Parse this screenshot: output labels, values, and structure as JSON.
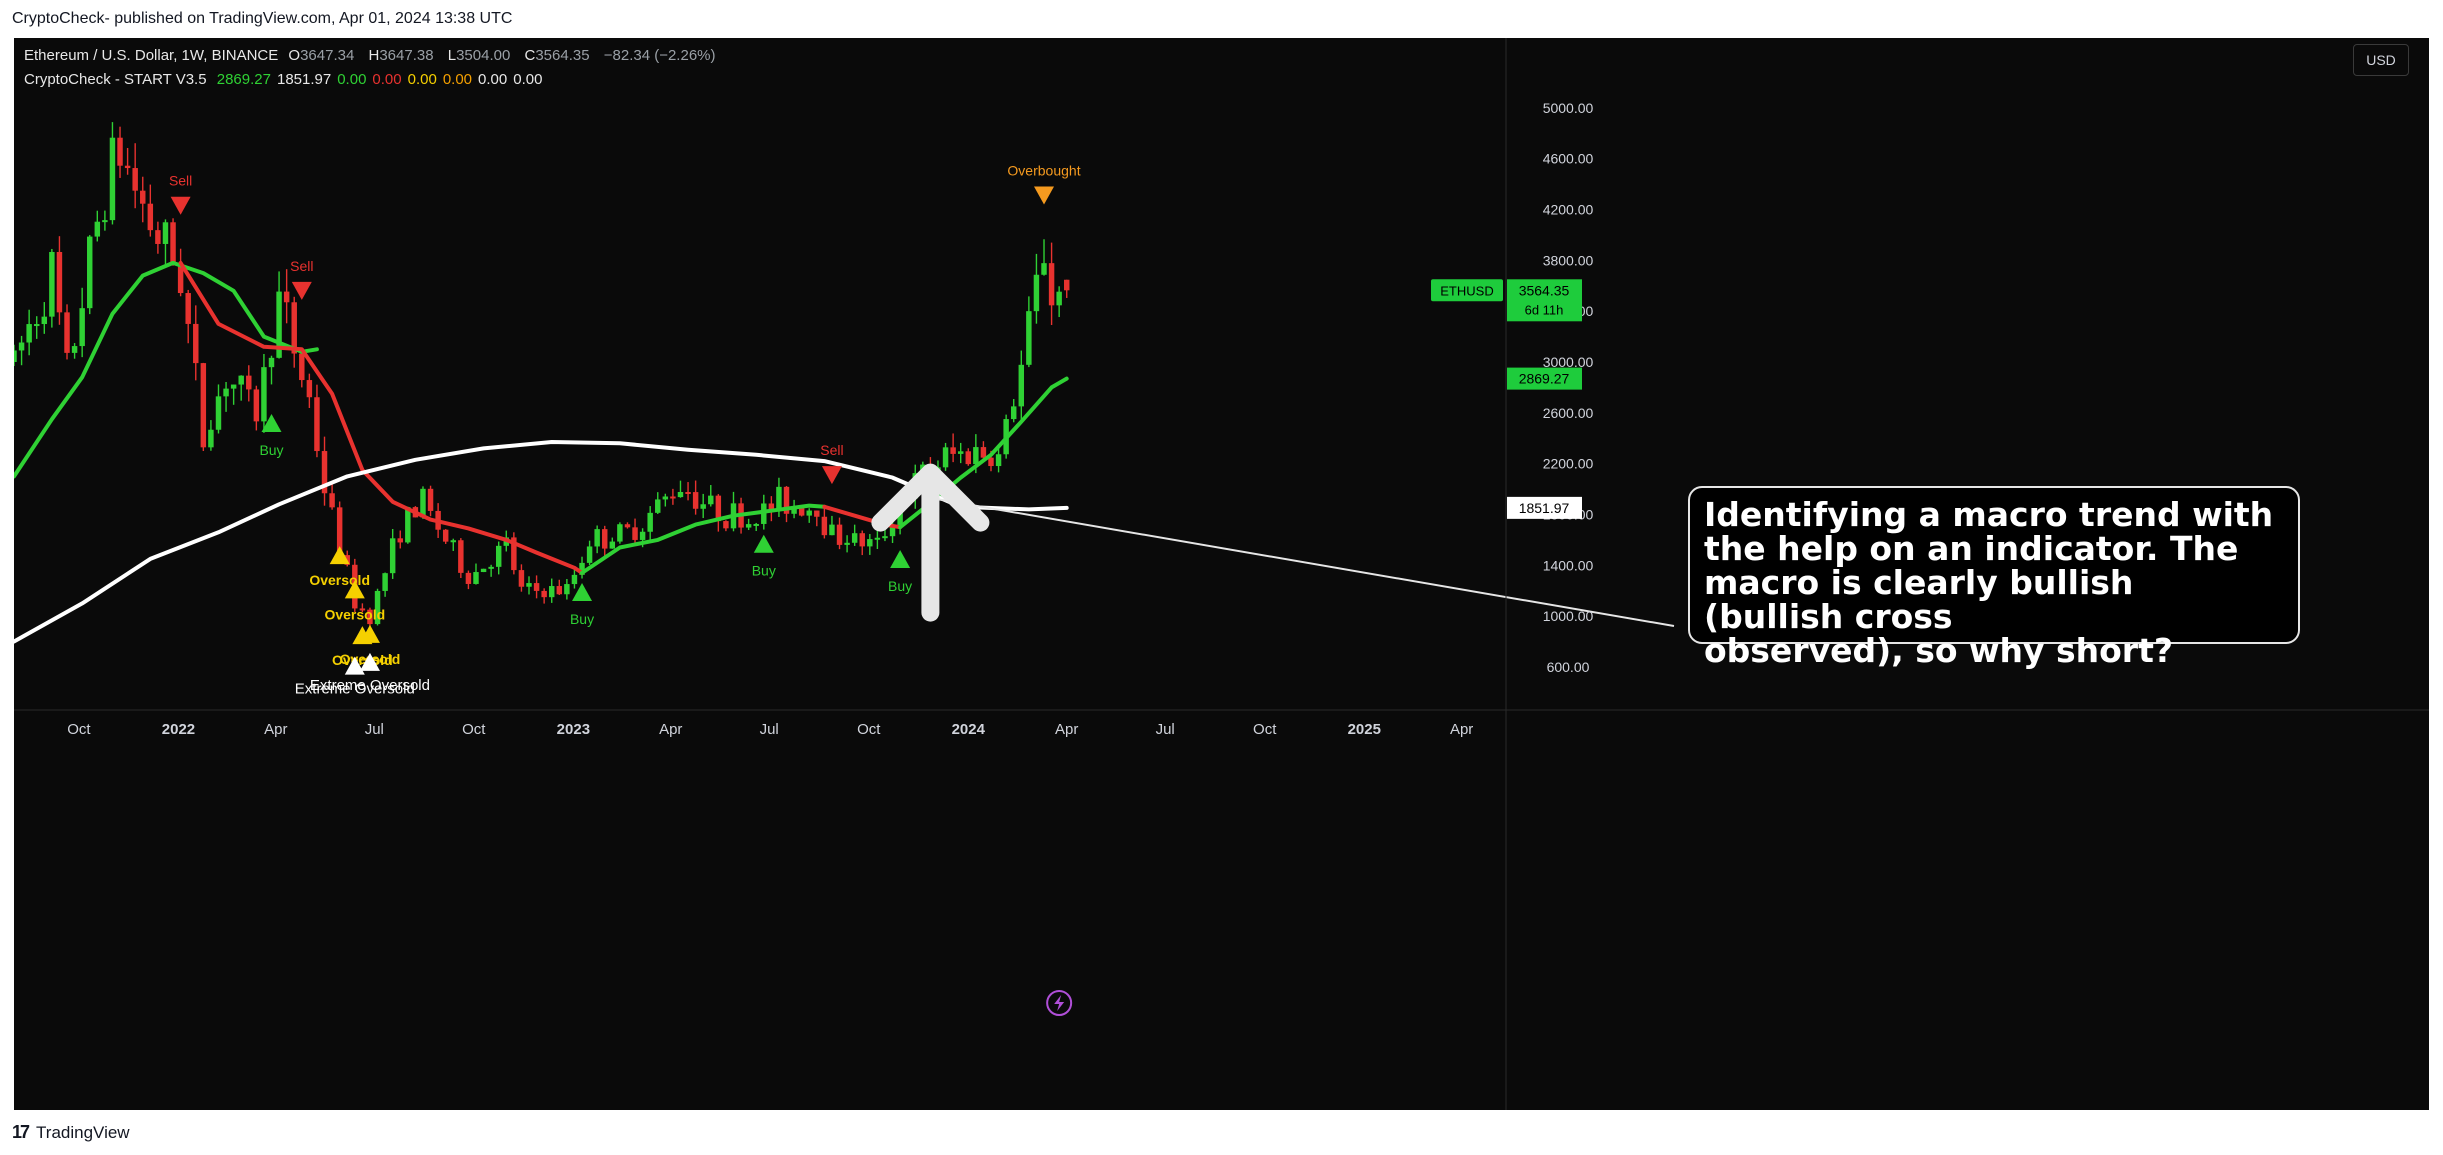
{
  "header": {
    "published_line": "CryptoCheck- published on TradingView.com, Apr 01, 2024 13:38 UTC"
  },
  "footer": {
    "brand": "TradingView",
    "logo_glyph": "17"
  },
  "legend": {
    "symbol": "Ethereum / U.S. Dollar, 1W, BINANCE",
    "o_label": "O",
    "o": "3647.34",
    "h_label": "H",
    "h": "3647.38",
    "l_label": "L",
    "l": "3504.00",
    "c_label": "C",
    "c": "3564.35",
    "change": "−82.34 (−2.26%)",
    "indicator_name": "CryptoCheck - START V3.5",
    "indicator_values": [
      {
        "text": "2869.27",
        "color": "#2fd134"
      },
      {
        "text": "1851.97",
        "color": "#e8e8e8"
      },
      {
        "text": "0.00",
        "color": "#2fd134"
      },
      {
        "text": "0.00",
        "color": "#e8322f"
      },
      {
        "text": "0.00",
        "color": "#f5d000"
      },
      {
        "text": "0.00",
        "color": "#f5a000"
      },
      {
        "text": "0.00",
        "color": "#e8e8e8"
      },
      {
        "text": "0.00",
        "color": "#e8e8e8"
      }
    ]
  },
  "price_scale": {
    "currency": "USD",
    "ticks": [
      "5000.00",
      "4600.00",
      "4200.00",
      "3800.00",
      "3400.00",
      "3000.00",
      "2600.00",
      "2200.00",
      "1800.00",
      "1400.00",
      "1000.00",
      "600.00"
    ],
    "tags": [
      {
        "label": "ETHUSD",
        "value": "3564.35",
        "extra": "6d 11h",
        "color": "#1ecc3c"
      },
      {
        "value": "2869.27",
        "color": "#1ecc3c"
      },
      {
        "value": "1851.97",
        "color": "#ffffff"
      }
    ]
  },
  "time_axis": {
    "ticks": [
      {
        "label": "Oct",
        "date": "2021-10-01"
      },
      {
        "label": "2022",
        "date": "2022-01-01"
      },
      {
        "label": "Apr",
        "date": "2022-04-01"
      },
      {
        "label": "Jul",
        "date": "2022-07-01"
      },
      {
        "label": "Oct",
        "date": "2022-10-01"
      },
      {
        "label": "2023",
        "date": "2023-01-01"
      },
      {
        "label": "Apr",
        "date": "2023-04-01"
      },
      {
        "label": "Jul",
        "date": "2023-07-01"
      },
      {
        "label": "Oct",
        "date": "2023-10-01"
      },
      {
        "label": "2024",
        "date": "2024-01-01"
      },
      {
        "label": "Apr",
        "date": "2024-04-01"
      },
      {
        "label": "Jul",
        "date": "2024-07-01"
      },
      {
        "label": "Oct",
        "date": "2024-10-01"
      },
      {
        "label": "2025",
        "date": "2025-01-01"
      },
      {
        "label": "Apr",
        "date": "2025-04-01"
      }
    ]
  },
  "annotation": {
    "lines": [
      "Identifying a macro trend with",
      "the help on an indicator. The",
      "macro is clearly bullish (bullish cross",
      "observed), so why short?"
    ]
  },
  "colors": {
    "up": "#2fd134",
    "down": "#e8322f",
    "ma_slow": "#ffffff",
    "oversold": "#f5d000",
    "overbought": "#f59a1f",
    "background": "#0a0a0a"
  },
  "icons": [
    "tradingview-logo-icon",
    "arrow-up-icon",
    "lightning-icon"
  ],
  "chart_data": {
    "type": "candlestick",
    "title": "Ethereum / U.S. Dollar, 1W, BINANCE",
    "ylim": [
      450,
      5550
    ],
    "xlim": [
      "2021-08-02",
      "2025-05-12"
    ],
    "log_scale": false,
    "grid": false,
    "keypoints": [
      [
        "2021-08-02",
        3000
      ],
      [
        "2021-09-06",
        3700
      ],
      [
        "2021-09-20",
        2900
      ],
      [
        "2021-10-25",
        4400
      ],
      [
        "2021-11-08",
        4650
      ],
      [
        "2021-12-06",
        4100
      ],
      [
        "2022-01-03",
        3700
      ],
      [
        "2022-01-24",
        2400
      ],
      [
        "2022-02-14",
        2900
      ],
      [
        "2022-03-14",
        2600
      ],
      [
        "2022-04-04",
        3500
      ],
      [
        "2022-05-02",
        2700
      ],
      [
        "2022-05-16",
        2000
      ],
      [
        "2022-06-13",
        1100
      ],
      [
        "2022-06-27",
        1000
      ],
      [
        "2022-07-25",
        1700
      ],
      [
        "2022-08-15",
        1900
      ],
      [
        "2022-09-05",
        1600
      ],
      [
        "2022-09-26",
        1300
      ],
      [
        "2022-10-31",
        1550
      ],
      [
        "2022-11-14",
        1200
      ],
      [
        "2022-12-26",
        1200
      ],
      [
        "2023-01-16",
        1600
      ],
      [
        "2023-02-20",
        1650
      ],
      [
        "2023-03-13",
        1800
      ],
      [
        "2023-04-10",
        2050
      ],
      [
        "2023-05-08",
        1850
      ],
      [
        "2023-06-12",
        1750
      ],
      [
        "2023-07-10",
        1900
      ],
      [
        "2023-08-14",
        1850
      ],
      [
        "2023-08-28",
        1650
      ],
      [
        "2023-10-09",
        1550
      ],
      [
        "2023-10-23",
        1800
      ],
      [
        "2023-11-13",
        2050
      ],
      [
        "2023-12-11",
        2250
      ],
      [
        "2024-01-08",
        2300
      ],
      [
        "2024-01-29",
        2250
      ],
      [
        "2024-02-19",
        2950
      ],
      [
        "2024-03-11",
        3900
      ],
      [
        "2024-03-18",
        3500
      ],
      [
        "2024-04-01",
        3564
      ]
    ],
    "candles": [],
    "series": [
      {
        "name": "2869.27",
        "color": "#2fd134",
        "points": [
          [
            "2021-08-02",
            2100
          ],
          [
            "2021-09-06",
            2550
          ],
          [
            "2021-10-04",
            2880
          ],
          [
            "2021-11-01",
            3380
          ],
          [
            "2021-11-29",
            3680
          ],
          [
            "2021-12-27",
            3780
          ],
          [
            "2022-01-24",
            3700
          ],
          [
            "2022-02-21",
            3560
          ],
          [
            "2022-03-21",
            3200
          ],
          [
            "2022-04-25",
            3080
          ],
          [
            "2022-05-09",
            3100
          ]
        ]
      },
      {
        "name": "",
        "color": "#e8322f",
        "points": [
          [
            "2022-01-03",
            3780
          ],
          [
            "2022-02-07",
            3300
          ],
          [
            "2022-03-21",
            3120
          ],
          [
            "2022-04-25",
            3100
          ],
          [
            "2022-05-23",
            2750
          ],
          [
            "2022-06-20",
            2150
          ],
          [
            "2022-07-18",
            1900
          ],
          [
            "2022-08-22",
            1760
          ],
          [
            "2022-09-26",
            1690
          ],
          [
            "2022-10-31",
            1600
          ],
          [
            "2022-11-28",
            1500
          ],
          [
            "2023-01-02",
            1380
          ],
          [
            "2023-01-09",
            1340
          ]
        ]
      },
      {
        "name": "",
        "color": "#2fd134",
        "points": [
          [
            "2023-01-09",
            1340
          ],
          [
            "2023-02-13",
            1540
          ],
          [
            "2023-03-20",
            1600
          ],
          [
            "2023-04-24",
            1720
          ],
          [
            "2023-05-29",
            1790
          ],
          [
            "2023-07-03",
            1830
          ],
          [
            "2023-08-07",
            1870
          ],
          [
            "2023-08-21",
            1860
          ]
        ]
      },
      {
        "name": "",
        "color": "#e8322f",
        "points": [
          [
            "2023-08-21",
            1860
          ],
          [
            "2023-09-18",
            1790
          ],
          [
            "2023-10-16",
            1720
          ],
          [
            "2023-10-30",
            1700
          ]
        ]
      },
      {
        "name": "",
        "color": "#2fd134",
        "points": [
          [
            "2023-10-30",
            1700
          ],
          [
            "2023-11-27",
            1890
          ],
          [
            "2023-12-25",
            2090
          ],
          [
            "2024-01-22",
            2270
          ],
          [
            "2024-02-19",
            2530
          ],
          [
            "2024-03-18",
            2800
          ],
          [
            "2024-04-01",
            2869.27
          ]
        ]
      },
      {
        "name": "1851.97",
        "color": "#ffffff",
        "points": [
          [
            "2021-08-02",
            800
          ],
          [
            "2021-10-04",
            1100
          ],
          [
            "2021-12-06",
            1450
          ],
          [
            "2022-02-07",
            1660
          ],
          [
            "2022-04-04",
            1880
          ],
          [
            "2022-06-06",
            2100
          ],
          [
            "2022-08-08",
            2230
          ],
          [
            "2022-10-10",
            2320
          ],
          [
            "2022-12-12",
            2370
          ],
          [
            "2023-02-13",
            2360
          ],
          [
            "2023-04-17",
            2310
          ],
          [
            "2023-06-19",
            2270
          ],
          [
            "2023-08-21",
            2220
          ],
          [
            "2023-10-23",
            2090
          ],
          [
            "2023-12-25",
            1860
          ],
          [
            "2024-02-26",
            1840
          ],
          [
            "2024-04-01",
            1851.97
          ]
        ]
      }
    ],
    "signals": [
      {
        "type": "sell",
        "text": "Sell",
        "date": "2022-01-03",
        "price": 4230,
        "color": "#e8322f"
      },
      {
        "type": "sell",
        "text": "Sell",
        "date": "2022-04-25",
        "price": 3560,
        "color": "#e8322f"
      },
      {
        "type": "sell",
        "text": "Sell",
        "date": "2023-08-28",
        "price": 2110,
        "color": "#e8322f"
      },
      {
        "type": "buy",
        "text": "Buy",
        "date": "2022-03-28",
        "price": 2520,
        "color": "#2fd134"
      },
      {
        "type": "buy",
        "text": "Buy",
        "date": "2023-01-09",
        "price": 1190,
        "color": "#2fd134"
      },
      {
        "type": "buy",
        "text": "Buy",
        "date": "2023-06-26",
        "price": 1570,
        "color": "#2fd134"
      },
      {
        "type": "buy",
        "text": "Buy",
        "date": "2023-10-30",
        "price": 1450,
        "color": "#2fd134"
      },
      {
        "type": "overbought",
        "text": "Overbought",
        "date": "2024-03-11",
        "price": 4310,
        "color": "#f59a1f"
      },
      {
        "type": "oversold",
        "text": "Oversold",
        "date": "2022-05-30",
        "price": 1480,
        "color": "#f5d000"
      },
      {
        "type": "oversold",
        "text": "Oversold",
        "date": "2022-06-13",
        "price": 1210,
        "color": "#f5d000"
      },
      {
        "type": "oversold",
        "text": "Oversold",
        "date": "2022-06-20",
        "price": 850,
        "color": "#f5d000"
      },
      {
        "type": "oversold",
        "text": "Oversold",
        "date": "2022-06-27",
        "price": 860,
        "color": "#f5d000"
      },
      {
        "type": "extreme",
        "text": "Extreme Oversold",
        "date": "2022-06-13",
        "price": 610,
        "color": "#ffffff"
      },
      {
        "type": "extreme",
        "text": "Extreme Oversold",
        "date": "2022-06-27",
        "price": 640,
        "color": "#ffffff"
      }
    ]
  }
}
